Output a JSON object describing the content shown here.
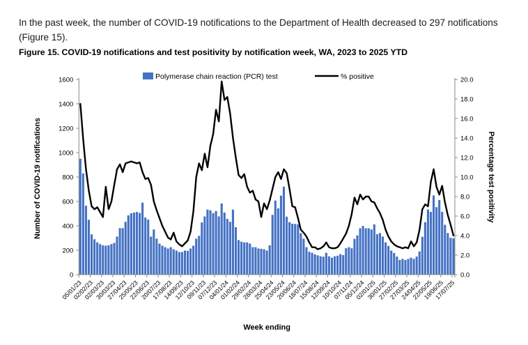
{
  "page": {
    "paragraph": "In the past week, the number of COVID-19 notifications to the Department of Health decreased to 297 notifications (Figure 15).",
    "figure_caption": "Figure 15. COVID-19 notifications and test positivity by notification week, WA, 2023 to 2025 YTD"
  },
  "chart_data": {
    "type": "bar+line",
    "title": "Figure 15. COVID-19 notifications and test positivity by notification week, WA, 2023 to 2025 YTD",
    "xlabel": "Week ending",
    "ylabel_left": "Number of COVID-19 notifications",
    "ylabel_right": "Percentage test positivity",
    "ylim_left": [
      0,
      1600
    ],
    "ystep_left": 200,
    "ylim_right": [
      0.0,
      20.0
    ],
    "ystep_right": 2.0,
    "grid": false,
    "legend_position": "top",
    "n_weeks": 133,
    "tick_every": 4,
    "x_tick_labels": [
      "05/01/23",
      "02/02/23",
      "02/03/23",
      "30/03/23",
      "27/04/23",
      "25/05/23",
      "22/06/23",
      "20/07/23",
      "17/08/23",
      "14/09/23",
      "12/10/23",
      "09/11/23",
      "07/12/23",
      "04/01/24",
      "01/02/24",
      "29/02/24",
      "28/03/24",
      "25/04/24",
      "23/05/24",
      "20/06/24",
      "18/07/24",
      "15/08/24",
      "12/09/24",
      "10/10/24",
      "07/11/24",
      "05/12/24",
      "02/01/25",
      "30/01/25",
      "27/02/25",
      "27/03/25",
      "24/04/25",
      "22/05/25",
      "19/06/25",
      "17/07/25"
    ],
    "series": [
      {
        "name": "Polymerase chain reaction (PCR) test",
        "type": "bar",
        "axis": "left",
        "color": "#4472C4",
        "values": [
          950,
          830,
          565,
          450,
          330,
          290,
          265,
          250,
          240,
          237,
          240,
          250,
          260,
          312,
          381,
          381,
          433,
          486,
          503,
          509,
          514,
          506,
          590,
          468,
          451,
          312,
          370,
          295,
          254,
          237,
          225,
          214,
          225,
          208,
          197,
          185,
          185,
          197,
          195,
          214,
          237,
          295,
          318,
          428,
          477,
          533,
          527,
          504,
          521,
          477,
          583,
          509,
          457,
          433,
          533,
          389,
          283,
          270,
          264,
          264,
          254,
          225,
          225,
          214,
          212,
          208,
          197,
          240,
          490,
          607,
          543,
          648,
          721,
          475,
          430,
          417,
          415,
          412,
          340,
          294,
          225,
          187,
          179,
          166,
          158,
          150,
          147,
          179,
          150,
          139,
          150,
          155,
          168,
          160,
          216,
          225,
          216,
          293,
          322,
          380,
          399,
          380,
          380,
          370,
          412,
          331,
          341,
          312,
          264,
          235,
          197,
          177,
          148,
          120,
          129,
          120,
          129,
          139,
          129,
          148,
          190,
          310,
          430,
          534,
          514,
          649,
          553,
          611,
          514,
          408,
          341,
          302,
          297
        ]
      },
      {
        "name": "% positive",
        "type": "line",
        "axis": "right",
        "color": "#000000",
        "values": [
          17.5,
          13.9,
          10.8,
          8.6,
          7.0,
          6.7,
          6.9,
          6.4,
          5.9,
          9.0,
          6.7,
          7.5,
          9.2,
          10.8,
          11.3,
          10.5,
          11.4,
          11.5,
          11.6,
          11.5,
          11.4,
          11.5,
          10.5,
          9.8,
          9.9,
          9.2,
          7.5,
          6.6,
          5.8,
          5.0,
          4.4,
          3.8,
          3.6,
          4.3,
          3.4,
          3.1,
          2.9,
          3.2,
          3.5,
          4.4,
          6.5,
          10.0,
          11.4,
          10.7,
          12.4,
          11.0,
          13.2,
          14.4,
          16.9,
          15.7,
          19.8,
          17.9,
          18.2,
          16.5,
          14.0,
          12.0,
          10.2,
          9.9,
          10.3,
          9.0,
          8.4,
          8.6,
          7.7,
          7.5,
          5.9,
          7.3,
          6.7,
          7.6,
          8.8,
          10.0,
          10.5,
          9.8,
          10.8,
          10.4,
          8.8,
          7.0,
          6.9,
          5.8,
          4.6,
          4.3,
          3.9,
          3.3,
          2.8,
          2.8,
          2.6,
          2.7,
          2.9,
          3.3,
          2.8,
          2.7,
          2.7,
          2.8,
          3.2,
          3.7,
          4.2,
          5.0,
          6.2,
          7.9,
          7.2,
          8.2,
          7.7,
          8.0,
          8.0,
          7.5,
          7.4,
          6.8,
          6.3,
          5.6,
          4.6,
          3.9,
          3.4,
          3.1,
          2.9,
          2.8,
          2.7,
          2.8,
          2.7,
          3.4,
          2.9,
          3.3,
          4.6,
          6.7,
          7.2,
          7.0,
          9.5,
          10.8,
          9.0,
          8.2,
          9.1,
          7.4,
          6.1,
          5.1,
          4.0
        ]
      }
    ],
    "colors": {
      "bar": "#4472C4",
      "line": "#000000",
      "axis": "#898989",
      "text": "#000000"
    }
  }
}
